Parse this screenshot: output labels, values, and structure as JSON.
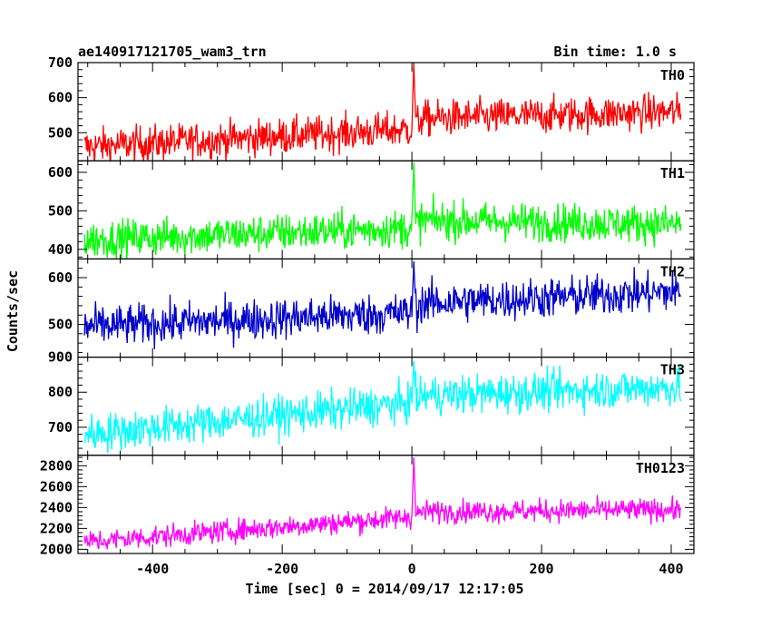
{
  "header": {
    "left": "ae140917121705_wam3_trn",
    "right": "Bin time: 1.0 s"
  },
  "chart_data": {
    "type": "line",
    "title": "ae140917121705_wam3_trn",
    "xlabel": "Time [sec] 0 = 2014/09/17 12:17:05",
    "ylabel": "Counts/sec",
    "bin_time": "Bin time: 1.0 s",
    "xlim": [
      -515,
      435
    ],
    "x_ticks": [
      -400,
      -200,
      0,
      200,
      400
    ],
    "x_start": -505,
    "x_end": 415,
    "burst_time": 3,
    "panels": [
      {
        "name": "TH0",
        "color": "#ff0000",
        "ylim": [
          420,
          700
        ],
        "y_ticks": [
          500,
          600,
          700
        ],
        "trend": [
          [
            -505,
            460
          ],
          [
            0,
            510
          ],
          [
            15,
            540
          ],
          [
            415,
            560
          ]
        ],
        "noise": 26,
        "burst_peak": 700
      },
      {
        "name": "TH1",
        "color": "#00ff00",
        "ylim": [
          375,
          630
        ],
        "y_ticks": [
          400,
          500,
          600
        ],
        "trend": [
          [
            -505,
            425
          ],
          [
            0,
            455
          ],
          [
            15,
            475
          ],
          [
            415,
            465
          ]
        ],
        "noise": 25,
        "burst_peak": 625
      },
      {
        "name": "TH2",
        "color": "#0000cc",
        "ylim": [
          430,
          640
        ],
        "y_ticks": [
          500,
          600
        ],
        "trend": [
          [
            -505,
            495
          ],
          [
            0,
            525
          ],
          [
            15,
            545
          ],
          [
            415,
            570
          ]
        ],
        "noise": 22,
        "burst_peak": 635
      },
      {
        "name": "TH3",
        "color": "#00ffff",
        "ylim": [
          620,
          900
        ],
        "y_ticks": [
          700,
          800,
          900
        ],
        "trend": [
          [
            -505,
            680
          ],
          [
            0,
            770
          ],
          [
            15,
            790
          ],
          [
            415,
            815
          ]
        ],
        "noise": 28,
        "burst_peak": 890
      },
      {
        "name": "TH0123",
        "color": "#ff00ff",
        "ylim": [
          1960,
          2900
        ],
        "y_ticks": [
          2000,
          2200,
          2400,
          2600,
          2800
        ],
        "trend": [
          [
            -505,
            2070
          ],
          [
            0,
            2310
          ],
          [
            15,
            2360
          ],
          [
            415,
            2380
          ]
        ],
        "noise": 55,
        "burst_peak": 2880
      }
    ]
  }
}
